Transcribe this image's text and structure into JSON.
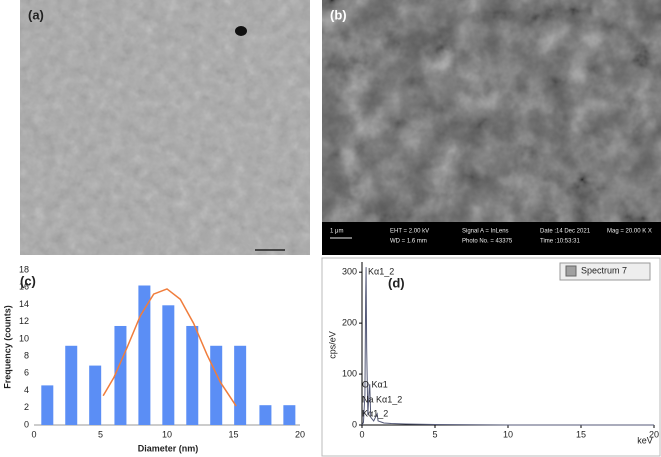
{
  "panels": {
    "a": {
      "label": "(a)"
    },
    "b": {
      "label": "(b)",
      "scale": "1 μm",
      "info": [
        "EHT = 2.00 kV",
        "WD = 1.6 mm",
        "Signal A = InLens",
        "Photo No. = 43375",
        "Date :14 Dec 2021",
        "Time :10:53:31",
        "Mag = 20.00 K X"
      ]
    }
  },
  "chart_data": [
    {
      "type": "bar",
      "title": "(c)",
      "x_label": "Diameter (nm)",
      "y_label": "Frequency (counts)",
      "xlim": [
        0,
        20
      ],
      "xticks": [
        0,
        5,
        10,
        15,
        20
      ],
      "ylim": [
        0,
        18
      ],
      "yticks": [
        0,
        2,
        4,
        6,
        8,
        10,
        12,
        14,
        16,
        18
      ],
      "series": [
        {
          "type": "bar",
          "color": "#5b8ef5",
          "x": [
            1,
            2.8,
            4.6,
            6.5,
            8.3,
            10.1,
            11.9,
            13.7,
            15.5,
            17.4,
            19.2
          ],
          "values": [
            4.6,
            9.2,
            6.9,
            11.5,
            16.2,
            13.9,
            11.5,
            9.2,
            9.2,
            2.3,
            2.3
          ]
        },
        {
          "type": "line",
          "color": "#f07d3c",
          "x": [
            5.2,
            6,
            7,
            8,
            9,
            10,
            11,
            12,
            13,
            14,
            15.2
          ],
          "values": [
            3.4,
            5.5,
            9,
            12.7,
            15.2,
            15.8,
            14.6,
            11.8,
            8.2,
            5,
            2.2
          ]
        }
      ]
    },
    {
      "type": "line",
      "title": "(d)",
      "x_label": "keV",
      "y_label": "cps/eV",
      "legend": "top-right",
      "xlim": [
        0,
        20
      ],
      "xticks": [
        0,
        5,
        10,
        15,
        20
      ],
      "ylim": [
        0,
        320
      ],
      "yticks": [
        0,
        100,
        200,
        300
      ],
      "x": [
        0,
        0.1,
        0.2,
        0.25,
        0.28,
        0.32,
        0.4,
        0.5,
        0.53,
        0.6,
        0.8,
        1.0,
        1.04,
        1.1,
        1.5,
        2,
        3,
        5,
        10,
        15,
        20
      ],
      "series": [
        {
          "name": "Spectrum 7",
          "color": "#555a78",
          "legend_color": "#a0a0a0",
          "values": [
            0,
            5,
            60,
            250,
            310,
            150,
            20,
            75,
            80,
            15,
            8,
            20,
            22,
            8,
            4,
            3,
            2,
            1,
            0,
            0,
            0
          ]
        }
      ],
      "annotations": [
        "Kα1_2",
        "O Kα1",
        "Na Kα1_2",
        "Kα1_2"
      ]
    }
  ]
}
